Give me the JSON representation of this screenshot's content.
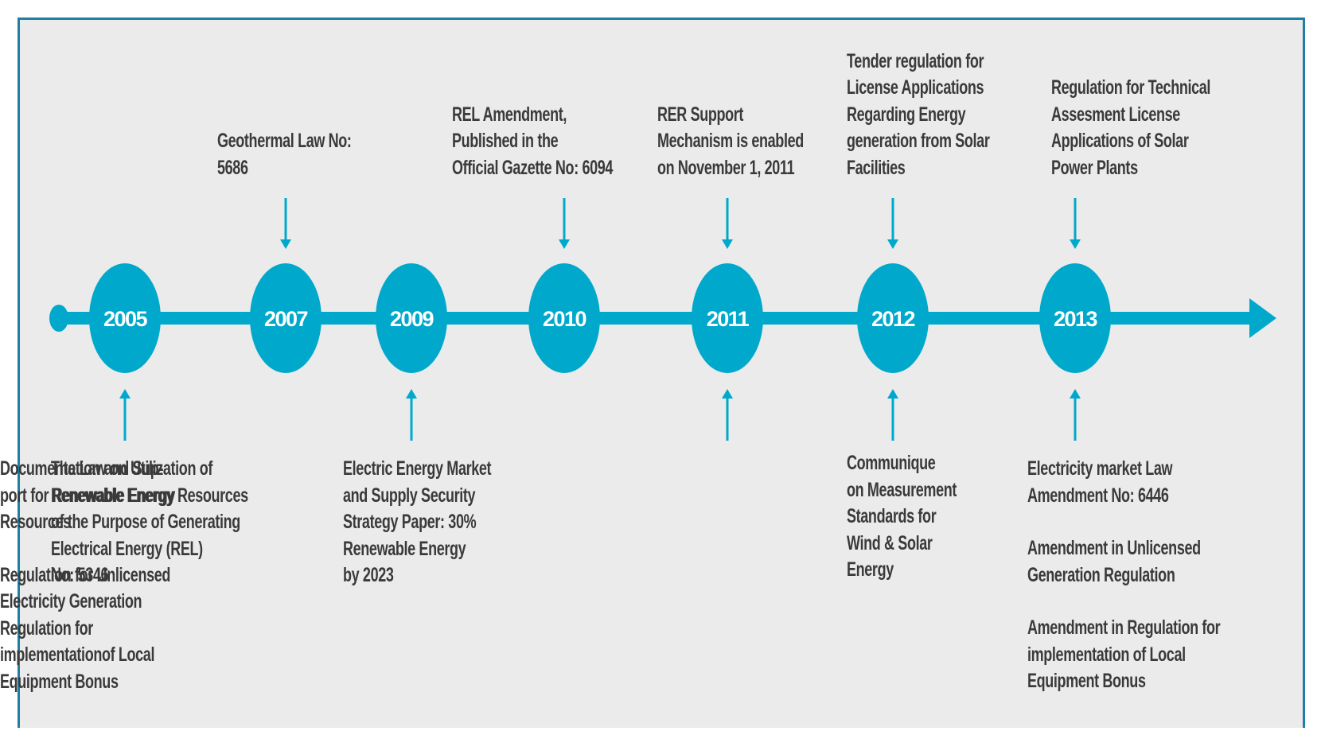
{
  "milestones": [
    {
      "year": "2005",
      "above": [],
      "below": [
        [
          "The Law on Utilization of",
          "Renewable Energy Resources",
          "of the Purpose of Generating",
          "Electrical Energy (REL)",
          "No: 5346"
        ]
      ]
    },
    {
      "year": "2007",
      "above": [
        [
          "Geothermal Law No:",
          "5686"
        ]
      ],
      "below": []
    },
    {
      "year": "2009",
      "above": [],
      "below": [
        [
          "Electric Energy Market",
          "and Supply Security",
          "Strategy Paper: 30%",
          "Renewable Energy",
          "by 2023"
        ]
      ]
    },
    {
      "year": "2010",
      "above": [
        [
          "REL Amendment,",
          "Published in the",
          "Official Gazette No: 6094"
        ]
      ],
      "below": []
    },
    {
      "year": "2011",
      "above": [
        [
          "RER Support",
          "Mechanism is enabled",
          "on November 1, 2011"
        ]
      ],
      "below": [
        [
          "Documentation and Sup-",
          "port for Renewable Energy",
          "Resources"
        ],
        [
          "Regulation for Unlicensed",
          "Electricity Generation",
          "Regulation for",
          "implementationof Local",
          "Equipment Bonus"
        ]
      ]
    },
    {
      "year": "2012",
      "above": [
        [
          "Tender regulation for",
          "License Applications",
          "Regarding Energy",
          "generation from Solar",
          "Facilities"
        ]
      ],
      "below": [
        [
          "Communique",
          "on Measurement",
          "Standards for",
          "Wind & Solar",
          "Energy"
        ]
      ]
    },
    {
      "year": "2013",
      "above": [
        [
          "Regulation for Technical",
          "Assesment License",
          "Applications of Solar",
          "Power Plants"
        ]
      ],
      "below": [
        [
          "Electricity market Law",
          "Amendment No: 6446"
        ],
        [
          "Amendment in Unlicensed",
          "Generation Regulation"
        ],
        [
          "Amendment in Regulation for",
          "implementation of Local",
          "Equipment Bonus"
        ]
      ]
    }
  ]
}
